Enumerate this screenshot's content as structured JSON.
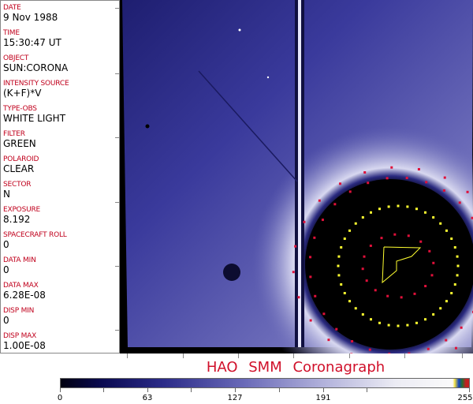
{
  "info_panel": {
    "fields": [
      {
        "label": "DATE",
        "value": "9 Nov 1988"
      },
      {
        "label": "TIME",
        "value": "15:30:47 UT"
      },
      {
        "label": "OBJECT",
        "value": "SUN:CORONA"
      },
      {
        "label": "INTENSITY SOURCE",
        "value": "(K+F)*V"
      },
      {
        "label": "TYPE-OBS",
        "value": "WHITE LIGHT"
      },
      {
        "label": "FILTER",
        "value": "GREEN"
      },
      {
        "label": "POLAROID",
        "value": "CLEAR"
      },
      {
        "label": "SECTOR",
        "value": "N"
      },
      {
        "label": "EXPOSURE",
        "value": "8.192"
      },
      {
        "label": "SPACECRAFT ROLL",
        "value": "0"
      },
      {
        "label": "DATA MIN",
        "value": "0"
      },
      {
        "label": "DATA MAX",
        "value": "6.28E-08"
      },
      {
        "label": "DISP MIN",
        "value": "0"
      },
      {
        "label": "DISP MAX",
        "value": "1.00E-08"
      }
    ]
  },
  "title": "HAO  SMM Coronagraph",
  "colorbar": {
    "tick_labels": [
      "0",
      "63",
      "127",
      "191",
      "255"
    ],
    "colors": {
      "low": "#000010",
      "mid": "#6a6ab8",
      "high": "#fafafa"
    }
  },
  "colors": {
    "label": "#c0001c",
    "title": "#d0102a",
    "overlay_yellow": "#ffff30",
    "overlay_red": "#e0103a"
  }
}
